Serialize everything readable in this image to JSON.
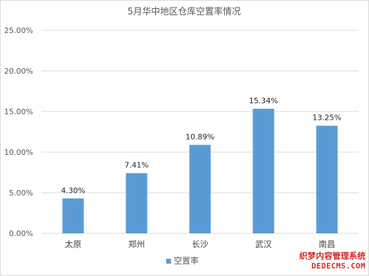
{
  "chart_data": {
    "type": "bar",
    "title": "5月华中地区仓库空置率情况",
    "categories": [
      "太原",
      "郑州",
      "长沙",
      "武汉",
      "南昌"
    ],
    "series": [
      {
        "name": "空置率",
        "values": [
          4.3,
          7.41,
          10.89,
          15.34,
          13.25
        ],
        "color": "#5b9bd5"
      }
    ],
    "data_labels": [
      "4.30%",
      "7.41%",
      "10.89%",
      "15.34%",
      "13.25%"
    ],
    "ylim": [
      0,
      25
    ],
    "yticks": [
      0,
      5,
      10,
      15,
      20,
      25
    ],
    "ytick_labels": [
      "0.00%",
      "5.00%",
      "10.00%",
      "15.00%",
      "20.00%",
      "25.00%"
    ],
    "grid": true,
    "legend_position": "bottom",
    "gridline_color": "#d9d9d9"
  },
  "watermark": {
    "line1": "织梦内容管理系统",
    "line2": "DEDECMS.COM"
  }
}
